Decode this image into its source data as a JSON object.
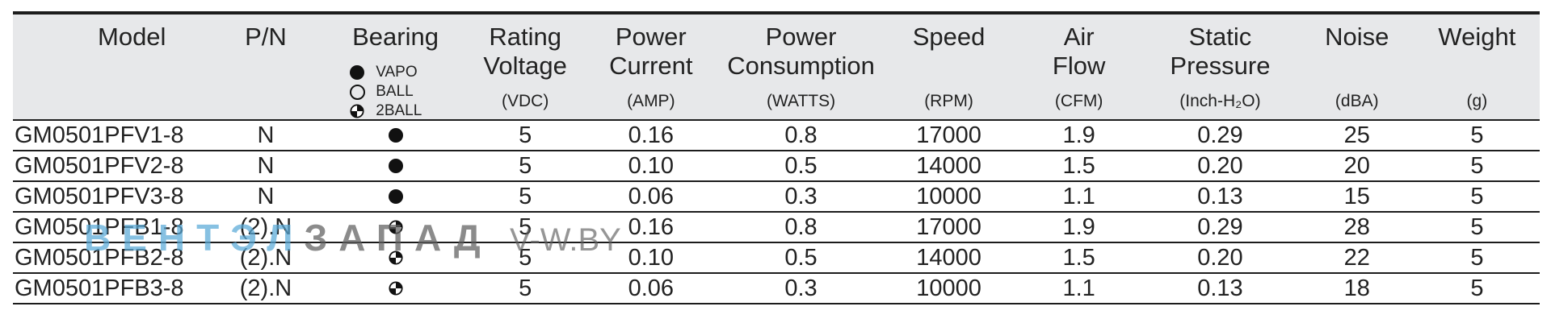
{
  "colors": {
    "header_bg": "#e7e8ea",
    "rule": "#1c1c1c",
    "watermark_blue": "#5aaad8",
    "watermark_gray": "#5f5f5f"
  },
  "headers": [
    {
      "key": "model",
      "label": "Model",
      "unit": ""
    },
    {
      "key": "pn",
      "label": "P/N",
      "unit": ""
    },
    {
      "key": "bearing",
      "label": "Bearing",
      "unit": ""
    },
    {
      "key": "voltage",
      "label": "Rating\nVoltage",
      "unit": "(VDC)"
    },
    {
      "key": "current",
      "label": "Power\nCurrent",
      "unit": "(AMP)"
    },
    {
      "key": "consumption",
      "label": "Power\nConsumption",
      "unit": "(WATTS)"
    },
    {
      "key": "speed",
      "label": "Speed",
      "unit": "(RPM)"
    },
    {
      "key": "airflow",
      "label": "Air\nFlow",
      "unit": "(CFM)"
    },
    {
      "key": "pressure",
      "label": "Static\nPressure",
      "unit": "(Inch-H₂O)"
    },
    {
      "key": "noise",
      "label": "Noise",
      "unit": "(dBA)"
    },
    {
      "key": "weight",
      "label": "Weight",
      "unit": "(g)"
    }
  ],
  "bearing_legend": [
    {
      "icon": "filled-circle-icon",
      "label": "VAPO"
    },
    {
      "icon": "open-circle-icon",
      "label": "BALL"
    },
    {
      "icon": "half-filled-circle-icon",
      "label": "2BALL"
    }
  ],
  "rows": [
    {
      "model": "GM0501PFV1-8",
      "pn": "N",
      "bearing": "VAPO",
      "voltage": "5",
      "current": "0.16",
      "consumption": "0.8",
      "speed": "17000",
      "airflow": "1.9",
      "pressure": "0.29",
      "noise": "25",
      "weight": "5"
    },
    {
      "model": "GM0501PFV2-8",
      "pn": "N",
      "bearing": "VAPO",
      "voltage": "5",
      "current": "0.10",
      "consumption": "0.5",
      "speed": "14000",
      "airflow": "1.5",
      "pressure": "0.20",
      "noise": "20",
      "weight": "5"
    },
    {
      "model": "GM0501PFV3-8",
      "pn": "N",
      "bearing": "VAPO",
      "voltage": "5",
      "current": "0.06",
      "consumption": "0.3",
      "speed": "10000",
      "airflow": "1.1",
      "pressure": "0.13",
      "noise": "15",
      "weight": "5"
    },
    {
      "model": "GM0501PFB1-8",
      "pn": "(2).N",
      "bearing": "2BALL",
      "voltage": "5",
      "current": "0.16",
      "consumption": "0.8",
      "speed": "17000",
      "airflow": "1.9",
      "pressure": "0.29",
      "noise": "28",
      "weight": "5"
    },
    {
      "model": "GM0501PFB2-8",
      "pn": "(2).N",
      "bearing": "2BALL",
      "voltage": "5",
      "current": "0.10",
      "consumption": "0.5",
      "speed": "14000",
      "airflow": "1.5",
      "pressure": "0.20",
      "noise": "22",
      "weight": "5"
    },
    {
      "model": "GM0501PFB3-8",
      "pn": "(2).N",
      "bearing": "2BALL",
      "voltage": "5",
      "current": "0.06",
      "consumption": "0.3",
      "speed": "10000",
      "airflow": "1.1",
      "pressure": "0.13",
      "noise": "18",
      "weight": "5"
    }
  ],
  "watermark": {
    "part_a": "ВЕНТЭЛ",
    "part_b": "ЗАПАД",
    "site": "V-W.BY"
  }
}
